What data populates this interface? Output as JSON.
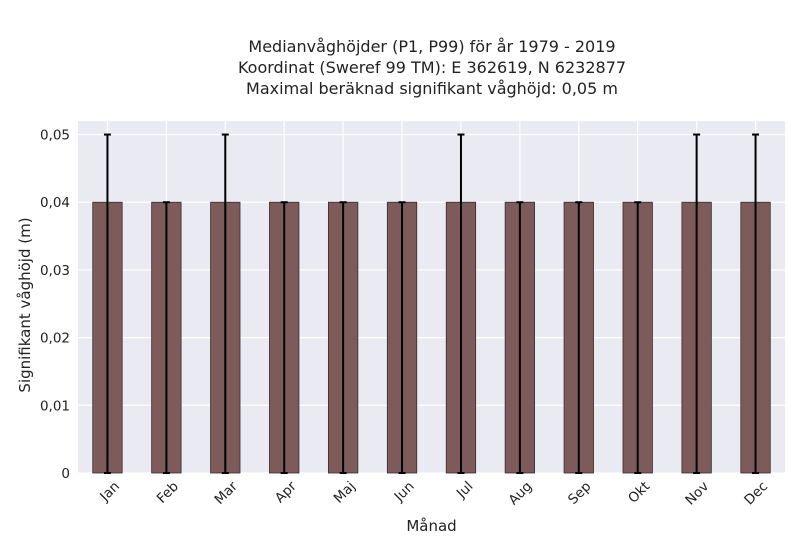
{
  "chart_data": {
    "type": "bar",
    "title_lines": [
      "Medianvåghöjder (P1, P99) för år 1979 - 2019",
      "Koordinat (Sweref 99 TM): E 362619, N 6232877",
      "Maximal beräknad signifikant våghöjd: 0,05 m"
    ],
    "xlabel": "Månad",
    "ylabel": "Signifikant våghöjd (m)",
    "categories": [
      "Jan",
      "Feb",
      "Mar",
      "Apr",
      "Maj",
      "Jun",
      "Jul",
      "Aug",
      "Sep",
      "Okt",
      "Nov",
      "Dec"
    ],
    "values": [
      0.04,
      0.04,
      0.04,
      0.04,
      0.04,
      0.04,
      0.04,
      0.04,
      0.04,
      0.04,
      0.04,
      0.04
    ],
    "error_low": [
      0,
      0,
      0,
      0,
      0,
      0,
      0,
      0,
      0,
      0,
      0,
      0
    ],
    "error_high": [
      0.05,
      0.04,
      0.05,
      0.04,
      0.04,
      0.04,
      0.05,
      0.04,
      0.04,
      0.04,
      0.05,
      0.05
    ],
    "ylim": [
      0,
      0.052
    ],
    "yticks": [
      0,
      0.01,
      0.02,
      0.03,
      0.04,
      0.05
    ],
    "ytick_labels": [
      "0",
      "0,01",
      "0,02",
      "0,03",
      "0,04",
      "0,05"
    ],
    "grid": true,
    "colors": {
      "bar": "#7d5b5b",
      "bar_edge": "#3a2c2c",
      "plot_bg": "#eaeaf2",
      "grid": "#ffffff",
      "error": "#000000"
    }
  }
}
